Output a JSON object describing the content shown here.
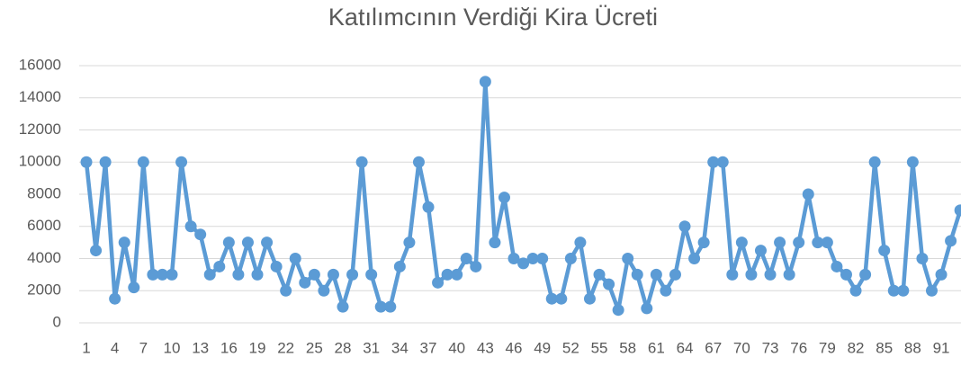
{
  "chart_data": {
    "type": "line",
    "title": "Katılımcının Verdiği Kira Ücreti",
    "categories": [
      "1",
      null,
      null,
      "4",
      null,
      null,
      "7",
      null,
      null,
      "10",
      null,
      null,
      "13",
      null,
      null,
      "16",
      null,
      null,
      "19",
      null,
      null,
      "22",
      null,
      null,
      "25",
      null,
      null,
      "28",
      null,
      null,
      "31",
      null,
      null,
      "34",
      null,
      null,
      "37",
      null,
      null,
      "40",
      null,
      null,
      "43",
      null,
      null,
      "46",
      null,
      null,
      "49",
      null,
      null,
      "52",
      null,
      null,
      "55",
      null,
      null,
      "58",
      null,
      null,
      "61",
      null,
      null,
      "64",
      null,
      null,
      "67",
      null,
      null,
      "70",
      null,
      null,
      "73",
      null,
      null,
      "76",
      null,
      null,
      "79",
      null,
      null,
      "82",
      null,
      null,
      "85",
      null,
      null,
      "88",
      null,
      null,
      "91",
      null,
      null
    ],
    "series": [
      {
        "color": "#5b9bd5",
        "values": [
          10000,
          4500,
          10000,
          1500,
          5000,
          2200,
          10000,
          3000,
          3000,
          3000,
          10000,
          6000,
          5500,
          3000,
          3500,
          5000,
          3000,
          5000,
          3000,
          5000,
          3500,
          2000,
          4000,
          2500,
          3000,
          2000,
          3000,
          1000,
          3000,
          10000,
          3000,
          1000,
          1000,
          3500,
          5000,
          10000,
          7200,
          2500,
          3000,
          3000,
          4000,
          3500,
          15000,
          5000,
          7800,
          4000,
          3700,
          4000,
          4000,
          1500,
          1500,
          4000,
          5000,
          1500,
          3000,
          2400,
          800,
          4000,
          3000,
          900,
          3000,
          2000,
          3000,
          6000,
          4000,
          5000,
          10000,
          10000,
          3000,
          5000,
          3000,
          4500,
          3000,
          5000,
          3000,
          5000,
          8000,
          5000,
          5000,
          3500,
          3000,
          2000,
          3000,
          10000,
          4500,
          2000,
          2000,
          10000,
          4000,
          2000,
          3000,
          5100,
          7000
        ]
      }
    ],
    "ylim": [
      0,
      16000
    ],
    "yticks": [
      0,
      2000,
      4000,
      6000,
      8000,
      10000,
      12000,
      14000,
      16000
    ],
    "grid": true
  }
}
